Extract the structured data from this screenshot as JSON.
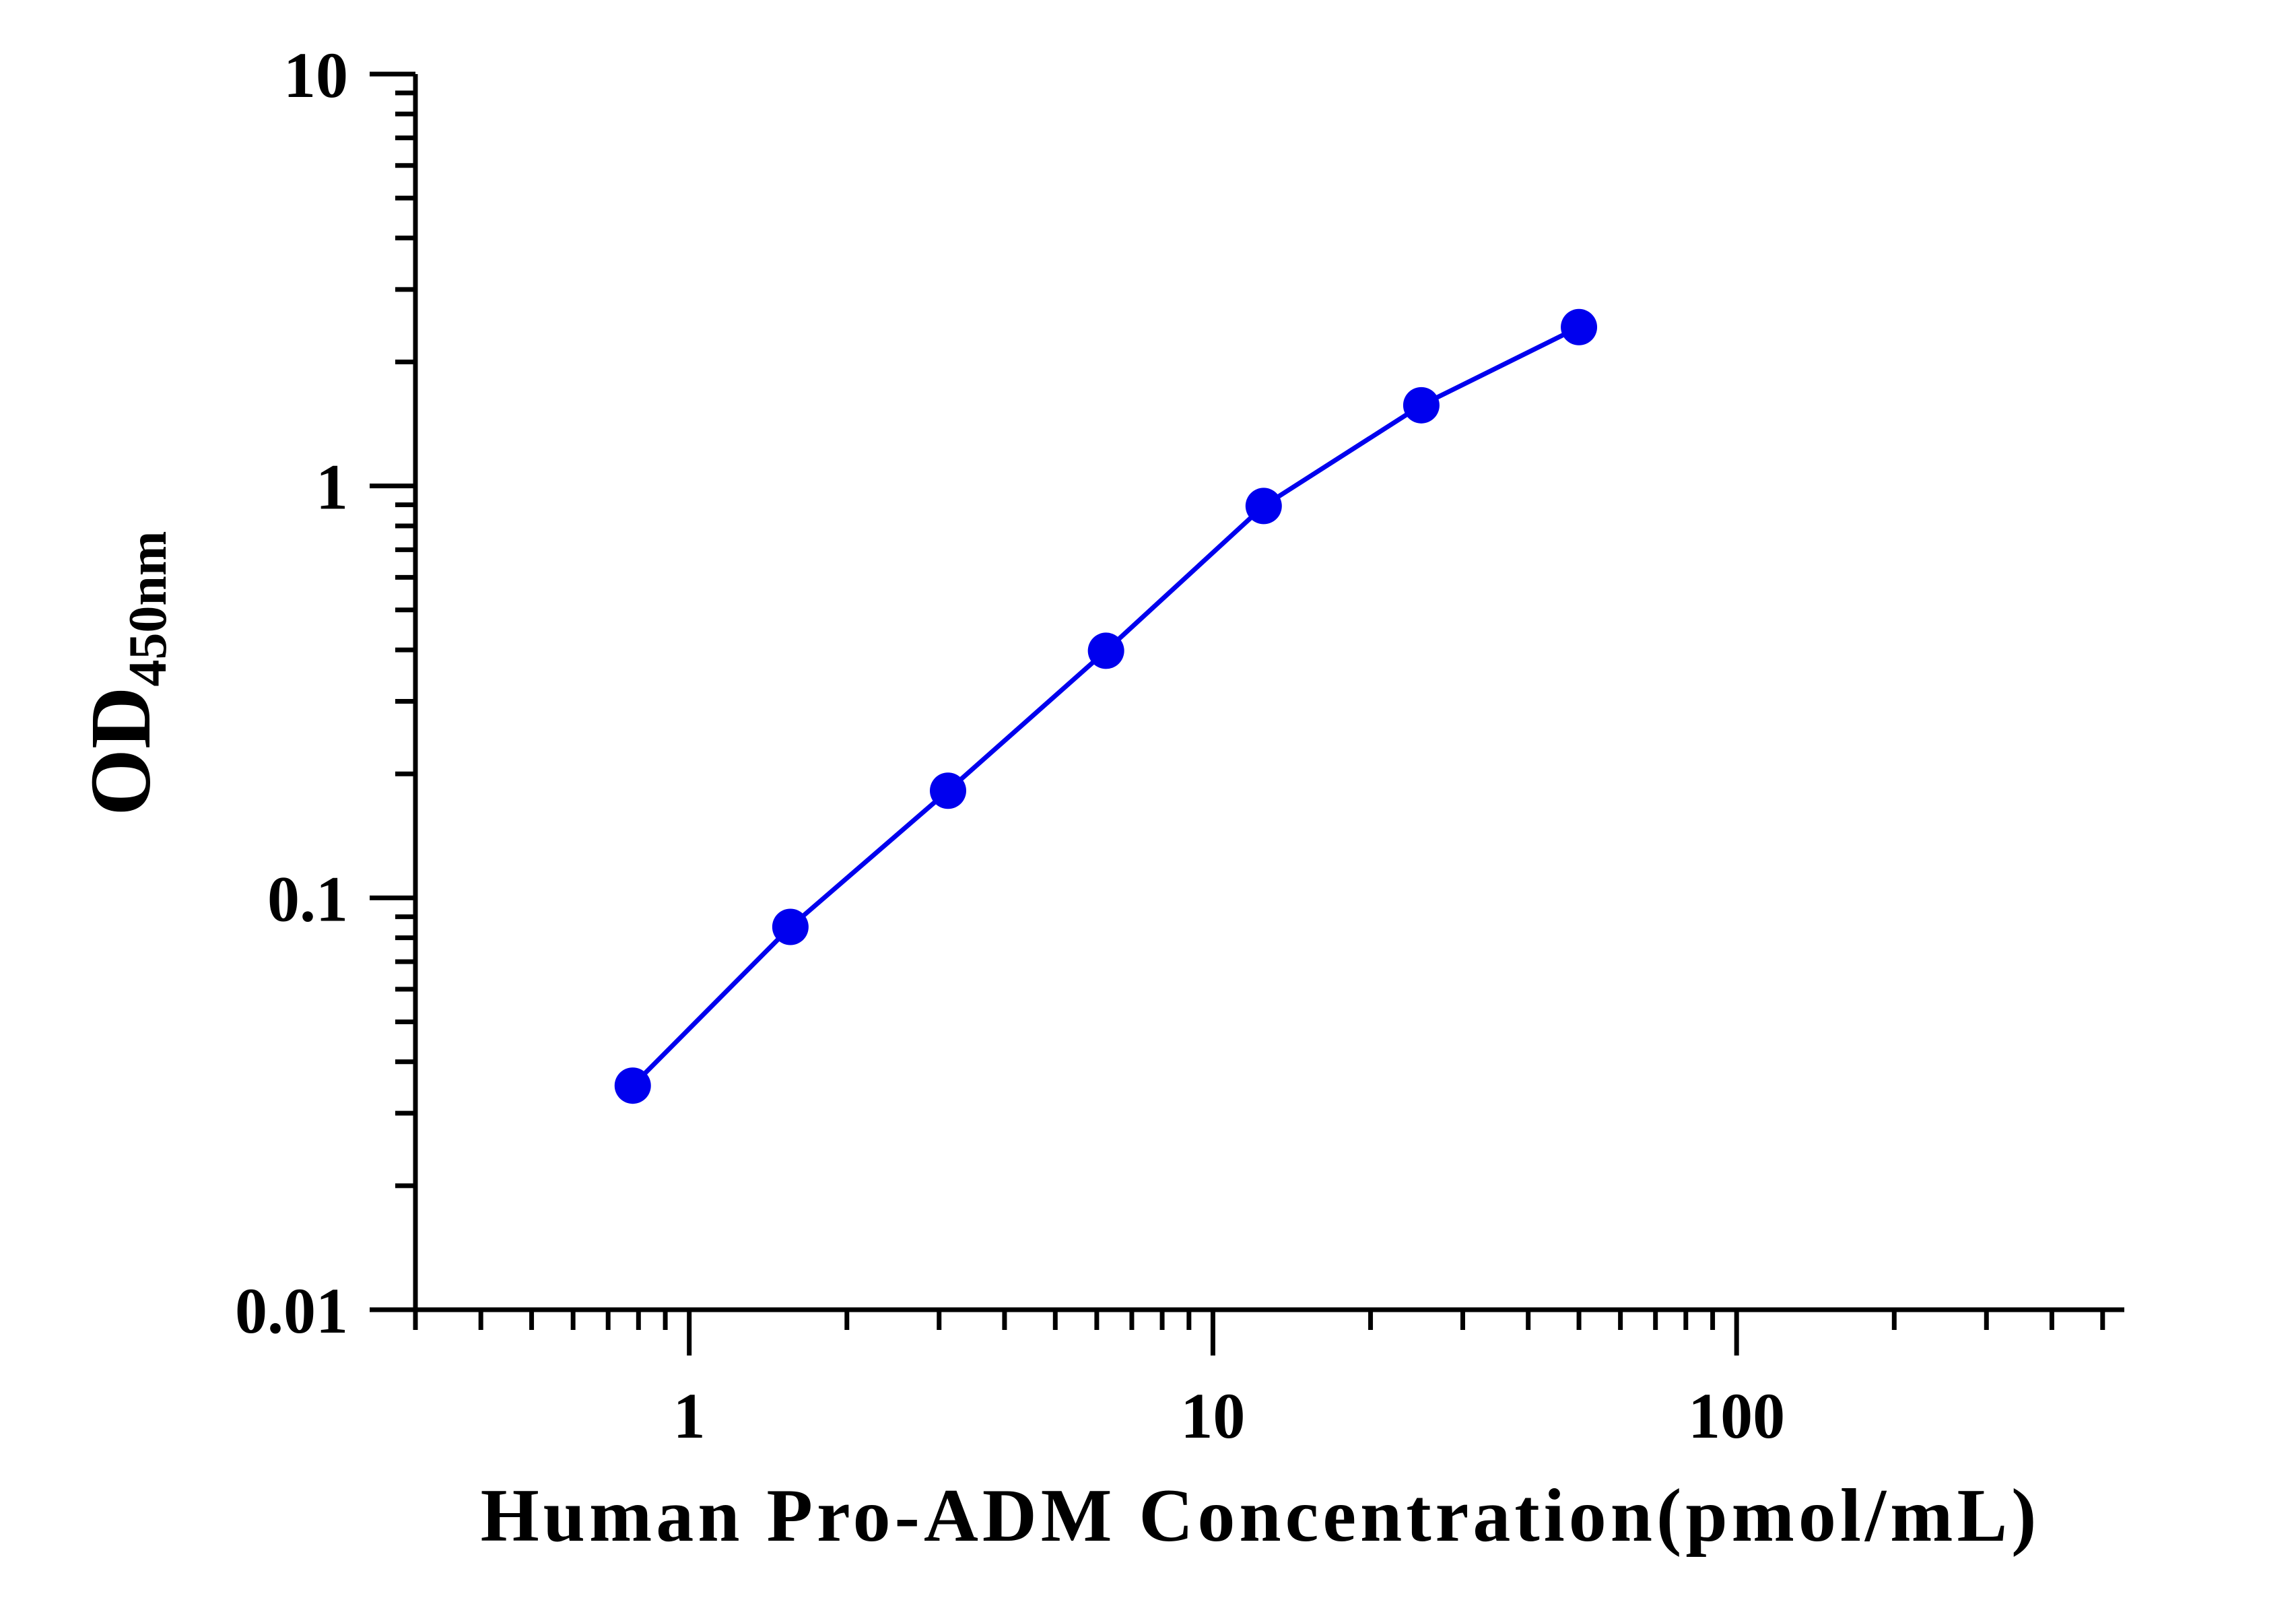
{
  "chart_data": {
    "type": "line",
    "xlabel": "Human Pro-ADM Concentration(pmol/mL)",
    "ylabel": "OD",
    "ylabel_subscript": "450nm",
    "xscale": "log",
    "yscale": "log",
    "xlim": [
      0.3,
      550
    ],
    "ylim": [
      0.01,
      10
    ],
    "x_ticks": [
      {
        "value": 1,
        "label": "1"
      },
      {
        "value": 10,
        "label": "10"
      },
      {
        "value": 100,
        "label": "100"
      }
    ],
    "y_ticks": [
      {
        "value": 0.01,
        "label": "0.01"
      },
      {
        "value": 0.1,
        "label": "0.1"
      },
      {
        "value": 1,
        "label": "1"
      },
      {
        "value": 10,
        "label": "10"
      }
    ],
    "grid": false,
    "series": [
      {
        "color": "#0000ee",
        "x": [
          0.78,
          1.56,
          3.12,
          6.25,
          12.5,
          25,
          50
        ],
        "y": [
          0.035,
          0.085,
          0.182,
          0.398,
          0.894,
          1.57,
          2.43
        ]
      }
    ]
  }
}
